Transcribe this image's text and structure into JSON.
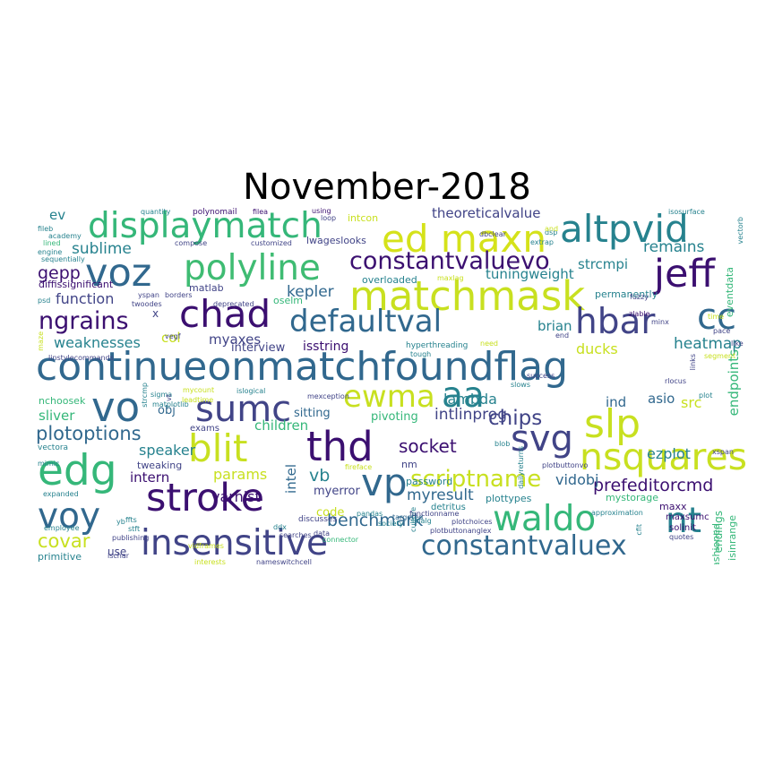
{
  "title": "November-2018",
  "colors": {
    "purple": "#3b0f70",
    "indigo": "#414487",
    "blue": "#31688e",
    "teal": "#26828e",
    "green": "#35b779",
    "lime": "#6ece58",
    "yellow": "#c8e020"
  },
  "words": [
    {
      "t": "continueonmatchfoundflag",
      "c": "#31688e"
    },
    {
      "t": "matchmask",
      "c": "#c8e020"
    },
    {
      "t": "displaymatch",
      "c": "#35b779"
    },
    {
      "t": "ed maxn",
      "c": "#d5e21a"
    },
    {
      "t": "altpvid",
      "c": "#26828e"
    },
    {
      "t": "polyline",
      "c": "#3fbc73"
    },
    {
      "t": "jeff",
      "c": "#3b0f70"
    },
    {
      "t": "voz",
      "c": "#31688e"
    },
    {
      "t": "constantvaluevo",
      "c": "#3b0f70"
    },
    {
      "t": "chad",
      "c": "#3b0f70"
    },
    {
      "t": "defaultval",
      "c": "#31688e"
    },
    {
      "t": "hbar",
      "c": "#414487"
    },
    {
      "t": "cc",
      "c": "#31688e"
    },
    {
      "t": "ngrains",
      "c": "#3b0f70"
    },
    {
      "t": "vo",
      "c": "#31688e"
    },
    {
      "t": "sumc",
      "c": "#414487"
    },
    {
      "t": "ewma",
      "c": "#c8e020"
    },
    {
      "t": "aa",
      "c": "#26828e"
    },
    {
      "t": "slp",
      "c": "#c8e020"
    },
    {
      "t": "thd",
      "c": "#3b0f70"
    },
    {
      "t": "svg",
      "c": "#414487"
    },
    {
      "t": "blit",
      "c": "#c8e020"
    },
    {
      "t": "nsquares",
      "c": "#c8e020"
    },
    {
      "t": "edg",
      "c": "#35b779"
    },
    {
      "t": "stroke",
      "c": "#3b0f70"
    },
    {
      "t": "vp",
      "c": "#31688e"
    },
    {
      "t": "waldo",
      "c": "#35b779"
    },
    {
      "t": "nt",
      "c": "#26828e"
    },
    {
      "t": "voy",
      "c": "#31688e"
    },
    {
      "t": "insensitive",
      "c": "#414487"
    },
    {
      "t": "constantvaluex",
      "c": "#31688e"
    },
    {
      "t": "scriptname",
      "c": "#c8e020"
    },
    {
      "t": "chips",
      "c": "#414487"
    },
    {
      "t": "socket",
      "c": "#3b0f70"
    },
    {
      "t": "plotoptions",
      "c": "#31688e"
    },
    {
      "t": "weaknesses",
      "c": "#26828e"
    },
    {
      "t": "myaxes",
      "c": "#414487"
    },
    {
      "t": "kepler",
      "c": "#31688e"
    },
    {
      "t": "heatmap",
      "c": "#26828e"
    },
    {
      "t": "remains",
      "c": "#26828e"
    },
    {
      "t": "sublime",
      "c": "#26828e"
    },
    {
      "t": "gepp",
      "c": "#3b0f70"
    },
    {
      "t": "function",
      "c": "#414487"
    },
    {
      "t": "theoreticalvalue",
      "c": "#414487"
    },
    {
      "t": "tuningweight",
      "c": "#26828e"
    },
    {
      "t": "strcmpi",
      "c": "#26828e"
    },
    {
      "t": "prefeditorcmd",
      "c": "#3b0f70"
    },
    {
      "t": "benchmark",
      "c": "#31688e"
    },
    {
      "t": "myresult",
      "c": "#31688e"
    },
    {
      "t": "vidobj",
      "c": "#31688e"
    },
    {
      "t": "intlinprog",
      "c": "#414487"
    },
    {
      "t": "lambda",
      "c": "#26828e"
    },
    {
      "t": "speaker",
      "c": "#26828e"
    },
    {
      "t": "children",
      "c": "#35b779"
    },
    {
      "t": "params",
      "c": "#c8e020"
    },
    {
      "t": "intern",
      "c": "#3b0f70"
    },
    {
      "t": "varhist",
      "c": "#3b0f70"
    },
    {
      "t": "covar",
      "c": "#c8e020"
    },
    {
      "t": "ezplot",
      "c": "#26828e"
    },
    {
      "t": "ducks",
      "c": "#c8e020"
    },
    {
      "t": "brian",
      "c": "#26828e"
    },
    {
      "t": "endpoints",
      "c": "#35b779"
    },
    {
      "t": "src",
      "c": "#c8e020"
    },
    {
      "t": "ind",
      "c": "#31688e"
    },
    {
      "t": "asio",
      "c": "#31688e"
    },
    {
      "t": "vb",
      "c": "#26828e"
    },
    {
      "t": "intel",
      "c": "#31688e"
    },
    {
      "t": "col",
      "c": "#c8e020"
    },
    {
      "t": "interview",
      "c": "#414487"
    },
    {
      "t": "isstring",
      "c": "#3b0f70"
    },
    {
      "t": "sliver",
      "c": "#35b779"
    },
    {
      "t": "obj",
      "c": "#31688e"
    },
    {
      "t": "sitting",
      "c": "#31688e"
    },
    {
      "t": "pivoting",
      "c": "#35b779"
    },
    {
      "t": "code",
      "c": "#c8e020"
    },
    {
      "t": "myerror",
      "c": "#414487"
    },
    {
      "t": "nm",
      "c": "#414487"
    },
    {
      "t": "endings",
      "c": "#35b779"
    },
    {
      "t": "fashioned",
      "c": "#35b779"
    },
    {
      "t": "isinrange",
      "c": "#35b779"
    },
    {
      "t": "mystorage",
      "c": "#35b779"
    },
    {
      "t": "plottypes",
      "c": "#26828e"
    },
    {
      "t": "use",
      "c": "#414487"
    },
    {
      "t": "tweaking",
      "c": "#414487"
    },
    {
      "t": "matlab",
      "c": "#414487"
    },
    {
      "t": "diffissignificant",
      "c": "#3b0f70"
    },
    {
      "t": "lwageslooks",
      "c": "#414487"
    },
    {
      "t": "overloaded",
      "c": "#26828e"
    },
    {
      "t": "ev",
      "c": "#26828e"
    },
    {
      "t": "oselm",
      "c": "#35b779"
    },
    {
      "t": "permanently",
      "c": "#26828e"
    },
    {
      "t": "eventdata",
      "c": "#35b779"
    },
    {
      "t": "maxx",
      "c": "#3b0f70"
    },
    {
      "t": "exams",
      "c": "#414487"
    },
    {
      "t": "password",
      "c": "#26828e"
    },
    {
      "t": "detritus",
      "c": "#26828e"
    },
    {
      "t": "solinit",
      "c": "#3b0f70"
    },
    {
      "t": "maxsumc",
      "c": "#3b0f70"
    },
    {
      "t": "primitive",
      "c": "#26828e"
    },
    {
      "t": "intcon",
      "c": "#c8e020"
    },
    {
      "t": "x",
      "c": "#414487"
    },
    {
      "t": "nchoosek",
      "c": "#35b779"
    },
    {
      "t": "vectora",
      "c": "#26828e"
    },
    {
      "t": "mimic",
      "c": "#26828e"
    },
    {
      "t": "expanded",
      "c": "#26828e"
    },
    {
      "t": "employee",
      "c": "#26828e"
    },
    {
      "t": "stft",
      "c": "#26828e"
    },
    {
      "t": "ffts",
      "c": "#26828e"
    },
    {
      "t": "yb",
      "c": "#26828e"
    },
    {
      "t": "ddx",
      "c": "#26828e"
    },
    {
      "t": "discusses",
      "c": "#414487"
    },
    {
      "t": "targeted",
      "c": "#31688e"
    },
    {
      "t": "pandas",
      "c": "#26828e"
    },
    {
      "t": "society",
      "c": "#26828e"
    },
    {
      "t": "linalg",
      "c": "#26828e"
    },
    {
      "t": "culture",
      "c": "#26828e"
    },
    {
      "t": "functionname",
      "c": "#414487"
    },
    {
      "t": "plotchoices",
      "c": "#414487"
    },
    {
      "t": "plotbuttonanglex",
      "c": "#414487"
    },
    {
      "t": "nameswitchcell",
      "c": "#414487"
    },
    {
      "t": "interests",
      "c": "#c8e020"
    },
    {
      "t": "plotbuttonvo",
      "c": "#414487"
    },
    {
      "t": "dailyreturns",
      "c": "#26828e"
    },
    {
      "t": "blob",
      "c": "#26828e"
    },
    {
      "t": "hyperthreading",
      "c": "#26828e"
    },
    {
      "t": "tough",
      "c": "#26828e"
    },
    {
      "t": "linstylecommands",
      "c": "#414487"
    },
    {
      "t": "mexception",
      "c": "#414487"
    },
    {
      "t": "islogical",
      "c": "#26828e"
    },
    {
      "t": "mycount",
      "c": "#c8e020"
    },
    {
      "t": "sigma",
      "c": "#26828e"
    },
    {
      "t": "strcmp",
      "c": "#26828e"
    },
    {
      "t": "vidframes",
      "c": "#c8e020"
    },
    {
      "t": "fireface",
      "c": "#c8e020"
    },
    {
      "t": "approximation",
      "c": "#26828e"
    },
    {
      "t": "quotes",
      "c": "#414487"
    },
    {
      "t": "cfit",
      "c": "#26828e"
    },
    {
      "t": "xspan",
      "c": "#414487"
    },
    {
      "t": "rlocus",
      "c": "#414487"
    },
    {
      "t": "minx",
      "c": "#414487"
    },
    {
      "t": "zlable",
      "c": "#3b0f70"
    },
    {
      "t": "fuzzy",
      "c": "#414487"
    },
    {
      "t": "vectorb",
      "c": "#26828e"
    },
    {
      "t": "isosurface",
      "c": "#26828e"
    },
    {
      "t": "extrap",
      "c": "#26828e"
    },
    {
      "t": "dsp",
      "c": "#26828e"
    },
    {
      "t": "dbclear",
      "c": "#414487"
    },
    {
      "t": "maxlag",
      "c": "#c8e020"
    },
    {
      "t": "customized",
      "c": "#414487"
    },
    {
      "t": "compose",
      "c": "#414487"
    },
    {
      "t": "quantity",
      "c": "#26828e"
    },
    {
      "t": "polynomail",
      "c": "#3b0f70"
    },
    {
      "t": "filea",
      "c": "#3b0f70"
    },
    {
      "t": "using",
      "c": "#3b0f70"
    },
    {
      "t": "fileb",
      "c": "#26828e"
    },
    {
      "t": "academy",
      "c": "#26828e"
    },
    {
      "t": "lined",
      "c": "#35b779"
    },
    {
      "t": "engine",
      "c": "#26828e"
    },
    {
      "t": "sequentially",
      "c": "#26828e"
    },
    {
      "t": "psd",
      "c": "#26828e"
    },
    {
      "t": "yspan",
      "c": "#414487"
    },
    {
      "t": "twoodes",
      "c": "#414487"
    },
    {
      "t": "borders",
      "c": "#414487"
    },
    {
      "t": "deprecated",
      "c": "#414487"
    },
    {
      "t": "publishing",
      "c": "#414487"
    },
    {
      "t": "matchtypecell",
      "c": "#414487"
    },
    {
      "t": "searches",
      "c": "#414487"
    },
    {
      "t": "data",
      "c": "#414487"
    },
    {
      "t": "connector",
      "c": "#35b779"
    },
    {
      "t": "loop",
      "c": "#414487"
    },
    {
      "t": "vegf",
      "c": "#414487"
    },
    {
      "t": "pace",
      "c": "#414487"
    },
    {
      "t": "and",
      "c": "#c8e020"
    },
    {
      "t": "end",
      "c": "#414487"
    },
    {
      "t": "need",
      "c": "#c8e020"
    },
    {
      "t": "time",
      "c": "#c8e020"
    },
    {
      "t": "like",
      "c": "#414487"
    },
    {
      "t": "links",
      "c": "#414487"
    },
    {
      "t": "success",
      "c": "#414487"
    },
    {
      "t": "slows",
      "c": "#26828e"
    },
    {
      "t": "vt",
      "c": "#414487"
    },
    {
      "t": "matplotlib",
      "c": "#26828e"
    },
    {
      "t": "leadtime",
      "c": "#c8e020"
    },
    {
      "t": "maze",
      "c": "#c8e020"
    },
    {
      "t": "segment",
      "c": "#c8e020"
    },
    {
      "t": "plot",
      "c": "#26828e"
    },
    {
      "t": "ischar",
      "c": "#414487"
    }
  ]
}
